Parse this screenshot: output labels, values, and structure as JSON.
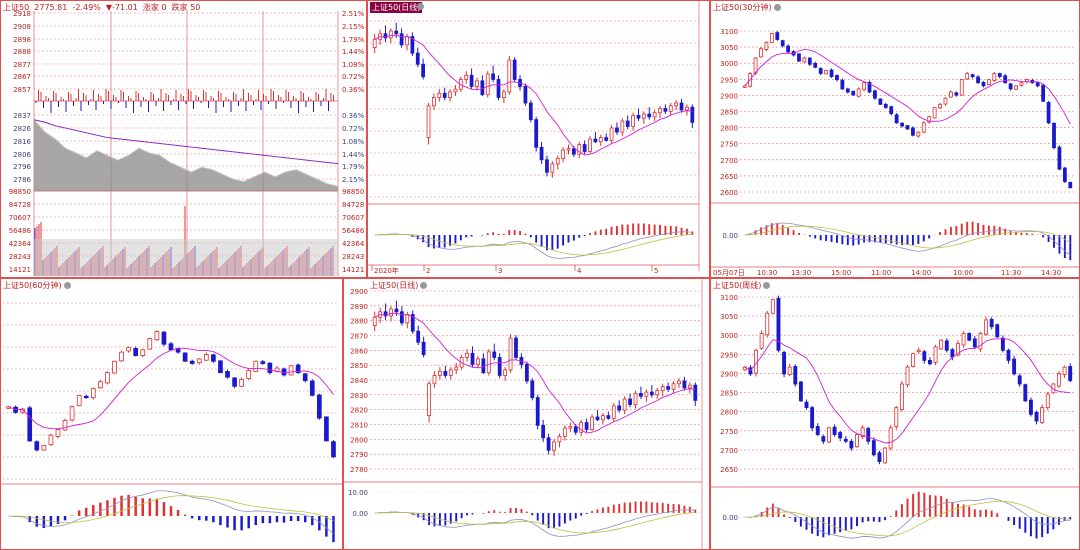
{
  "header": {
    "name": "上证50",
    "price": "2775.81",
    "change_pct": "-2.49%",
    "change": "▼-71.01",
    "ups": "涨家 0",
    "downs": "跌家 50"
  },
  "panels": {
    "intraday": {
      "price_ticks": [
        "2918",
        "2908",
        "2898",
        "2888",
        "2877",
        "2867",
        "2857",
        "2837",
        "2826",
        "2816",
        "2806",
        "2796",
        "2786"
      ],
      "pct_ticks_up": [
        "2.51%",
        "2.15%",
        "1.79%",
        "1.44%",
        "1.08%",
        "0.72%",
        "0.36%"
      ],
      "pct_ticks_down": [
        "0.36%",
        "0.72%",
        "1.08%",
        "1.44%",
        "1.79%",
        "2.15%"
      ],
      "vol_ticks": [
        "98850",
        "84728",
        "70607",
        "56486",
        "42364",
        "28243",
        "14121"
      ]
    },
    "daily_top": {
      "title": "上证50(日线)",
      "dates": [
        "2020年",
        "2",
        "3",
        "4",
        "5"
      ]
    },
    "min30": {
      "title": "上证50(30分钟)",
      "y_ticks": [
        "3100",
        "3050",
        "3000",
        "2950",
        "2900",
        "2850",
        "2800",
        "2750",
        "2700",
        "2650",
        "2600"
      ],
      "macd_tick": "0.00",
      "x_ticks": [
        "05月07日",
        "10:30",
        "13:30",
        "15:00",
        "11:00",
        "14:00",
        "10:00",
        "11:30",
        "14:30"
      ]
    },
    "min60": {
      "title": "上证50(60分钟)"
    },
    "daily_bottom": {
      "title": "上证50(日线)",
      "y_ticks": [
        "2900",
        "2890",
        "2880",
        "2870",
        "2860",
        "2850",
        "2840",
        "2830",
        "2820",
        "2810",
        "2800",
        "2790",
        "2780"
      ],
      "macd_ticks": [
        "10.00",
        "0.00"
      ]
    },
    "weekly": {
      "title": "上证50(周线)",
      "y_ticks": [
        "3100",
        "3050",
        "3000",
        "2950",
        "2900",
        "2850",
        "2800",
        "2750",
        "2700",
        "2650"
      ],
      "macd_tick": "0.00"
    }
  },
  "chart_data": [
    {
      "type": "line",
      "name": "intraday",
      "ylim": [
        2786,
        2918
      ],
      "price": [
        2836,
        2826,
        2820,
        2812,
        2808,
        2804,
        2810,
        2806,
        2802,
        2806,
        2812,
        2808,
        2806,
        2800,
        2796,
        2792,
        2796,
        2794,
        2790,
        2786,
        2784,
        2788,
        2792,
        2788,
        2792,
        2794,
        2790,
        2786,
        2782,
        2780
      ],
      "avg": [
        2836,
        2834,
        2831,
        2829,
        2827,
        2825,
        2823,
        2821,
        2820,
        2819,
        2818,
        2817,
        2816,
        2815,
        2814,
        2813,
        2812,
        2811,
        2810,
        2809,
        2808,
        2807,
        2806,
        2805,
        2804,
        2803,
        2802,
        2801,
        2800,
        2799
      ]
    },
    {
      "type": "candlestick",
      "name": "daily",
      "ylim": [
        2775,
        2905
      ],
      "ohlc": [
        [
          2880,
          2890,
          2876,
          2886
        ],
        [
          2886,
          2893,
          2882,
          2890
        ],
        [
          2890,
          2896,
          2884,
          2887
        ],
        [
          2887,
          2894,
          2883,
          2892
        ],
        [
          2892,
          2898,
          2887,
          2890
        ],
        [
          2890,
          2894,
          2880,
          2882
        ],
        [
          2882,
          2890,
          2878,
          2888
        ],
        [
          2888,
          2891,
          2874,
          2876
        ],
        [
          2876,
          2880,
          2866,
          2868
        ],
        [
          2868,
          2872,
          2857,
          2859
        ],
        [
          2815,
          2840,
          2810,
          2838
        ],
        [
          2838,
          2847,
          2835,
          2844
        ],
        [
          2844,
          2850,
          2841,
          2847
        ],
        [
          2847,
          2851,
          2842,
          2844
        ],
        [
          2844,
          2850,
          2841,
          2848
        ],
        [
          2848,
          2853,
          2845,
          2850
        ],
        [
          2850,
          2859,
          2848,
          2857
        ],
        [
          2857,
          2863,
          2854,
          2860
        ],
        [
          2860,
          2865,
          2850,
          2852
        ],
        [
          2852,
          2858,
          2849,
          2856
        ],
        [
          2856,
          2860,
          2845,
          2846
        ],
        [
          2846,
          2863,
          2844,
          2861
        ],
        [
          2861,
          2867,
          2855,
          2857
        ],
        [
          2857,
          2860,
          2842,
          2844
        ],
        [
          2844,
          2850,
          2840,
          2848
        ],
        [
          2848,
          2874,
          2846,
          2871
        ],
        [
          2871,
          2873,
          2855,
          2857
        ],
        [
          2857,
          2860,
          2849,
          2852
        ],
        [
          2852,
          2854,
          2838,
          2840
        ],
        [
          2840,
          2842,
          2826,
          2828
        ],
        [
          2828,
          2830,
          2805,
          2808
        ],
        [
          2808,
          2812,
          2796,
          2799
        ],
        [
          2799,
          2802,
          2787,
          2790
        ],
        [
          2790,
          2798,
          2786,
          2796
        ],
        [
          2796,
          2802,
          2792,
          2800
        ],
        [
          2800,
          2808,
          2797,
          2806
        ],
        [
          2806,
          2810,
          2803,
          2807
        ],
        [
          2807,
          2809,
          2801,
          2803
        ],
        [
          2803,
          2812,
          2800,
          2810
        ],
        [
          2810,
          2813,
          2803,
          2805
        ],
        [
          2805,
          2816,
          2804,
          2814
        ],
        [
          2814,
          2819,
          2811,
          2812
        ],
        [
          2812,
          2817,
          2809,
          2815
        ],
        [
          2815,
          2818,
          2812,
          2813
        ],
        [
          2813,
          2824,
          2811,
          2822
        ],
        [
          2822,
          2826,
          2817,
          2819
        ],
        [
          2819,
          2829,
          2816,
          2827
        ],
        [
          2827,
          2831,
          2821,
          2823
        ],
        [
          2823,
          2833,
          2820,
          2831
        ],
        [
          2831,
          2836,
          2827,
          2829
        ],
        [
          2829,
          2834,
          2825,
          2832
        ],
        [
          2832,
          2837,
          2828,
          2830
        ],
        [
          2830,
          2835,
          2827,
          2833
        ],
        [
          2833,
          2838,
          2829,
          2836
        ],
        [
          2836,
          2839,
          2832,
          2834
        ],
        [
          2834,
          2840,
          2831,
          2838
        ],
        [
          2838,
          2842,
          2835,
          2840
        ],
        [
          2840,
          2843,
          2833,
          2835
        ],
        [
          2835,
          2839,
          2831,
          2837
        ],
        [
          2837,
          2839,
          2822,
          2826
        ]
      ]
    },
    {
      "type": "candlestick",
      "name": "min30",
      "ylim": [
        2560,
        3130
      ],
      "closes": [
        2920,
        2960,
        3010,
        3040,
        3060,
        3090,
        3070,
        3050,
        3030,
        3020,
        3000,
        3010,
        2990,
        2980,
        2960,
        2970,
        2950,
        2940,
        2910,
        2900,
        2890,
        2910,
        2930,
        2900,
        2880,
        2860,
        2850,
        2830,
        2800,
        2790,
        2780,
        2760,
        2770,
        2800,
        2820,
        2850,
        2860,
        2880,
        2900,
        2890,
        2940,
        2960,
        2950,
        2930,
        2920,
        2940,
        2960,
        2950,
        2930,
        2910,
        2920,
        2930,
        2940,
        2930,
        2920,
        2870,
        2800,
        2720,
        2650,
        2610,
        2590
      ]
    },
    {
      "type": "candlestick",
      "name": "min60",
      "ylim": [
        2760,
        2920
      ],
      "closes": [
        2820,
        2815,
        2818,
        2790,
        2782,
        2786,
        2795,
        2800,
        2808,
        2820,
        2830,
        2828,
        2836,
        2842,
        2850,
        2860,
        2868,
        2872,
        2865,
        2870,
        2880,
        2886,
        2875,
        2870,
        2868,
        2860,
        2858,
        2862,
        2866,
        2860,
        2850,
        2846,
        2838,
        2844,
        2852,
        2860,
        2858,
        2850,
        2854,
        2848,
        2856,
        2850,
        2843,
        2830,
        2810,
        2790,
        2776
      ]
    },
    {
      "type": "candlestick",
      "name": "weekly",
      "ylim": [
        2580,
        3120
      ],
      "closes": [
        2900,
        2880,
        2950,
        3000,
        3060,
        3100,
        2950,
        2880,
        2900,
        2850,
        2800,
        2780,
        2720,
        2700,
        2680,
        2720,
        2700,
        2690,
        2680,
        2660,
        2700,
        2720,
        2680,
        2640,
        2620,
        2660,
        2720,
        2780,
        2850,
        2900,
        2940,
        2950,
        2920,
        2910,
        2960,
        2980,
        2950,
        2930,
        2970,
        3000,
        2980,
        2960,
        3000,
        3040,
        3020,
        2990,
        2950,
        2920,
        2880,
        2850,
        2800,
        2760,
        2740,
        2780,
        2820,
        2850,
        2880,
        2900,
        2860
      ]
    }
  ]
}
